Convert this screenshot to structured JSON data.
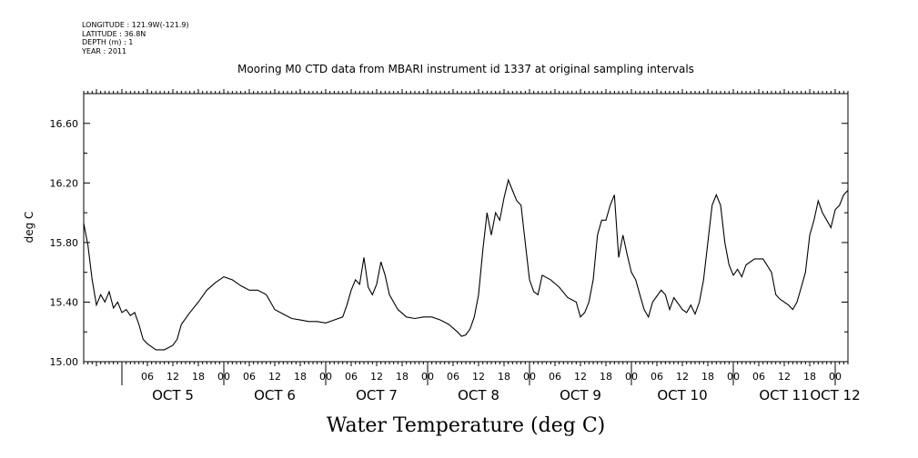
{
  "header": {
    "longitude": "LONGITUDE : 121.9W(-121.9)",
    "latitude": "LATITUDE : 36.8N",
    "depth": "DEPTH (m) : 1",
    "year": "YEAR : 2011"
  },
  "chart_data": {
    "type": "line",
    "title": "Mooring M0 CTD data from MBARI instrument id 1337 at original sampling intervals",
    "xlabel": "Water Temperature (deg C)",
    "ylabel": "deg C",
    "ylim": [
      15.0,
      16.8
    ],
    "xlim": [
      "2011-10-04T15:00",
      "2011-10-12T03:00"
    ],
    "yticks": [
      "15.00",
      "15.40",
      "15.80",
      "16.20",
      "16.60"
    ],
    "hour_ticks": [
      {
        "x": "2011-10-05T06:00",
        "label": "06"
      },
      {
        "x": "2011-10-05T12:00",
        "label": "12"
      },
      {
        "x": "2011-10-05T18:00",
        "label": "18"
      },
      {
        "x": "2011-10-06T00:00",
        "label": "00"
      },
      {
        "x": "2011-10-06T06:00",
        "label": "06"
      },
      {
        "x": "2011-10-06T12:00",
        "label": "12"
      },
      {
        "x": "2011-10-06T18:00",
        "label": "18"
      },
      {
        "x": "2011-10-07T00:00",
        "label": "00"
      },
      {
        "x": "2011-10-07T06:00",
        "label": "06"
      },
      {
        "x": "2011-10-07T12:00",
        "label": "12"
      },
      {
        "x": "2011-10-07T18:00",
        "label": "18"
      },
      {
        "x": "2011-10-08T00:00",
        "label": "00"
      },
      {
        "x": "2011-10-08T06:00",
        "label": "06"
      },
      {
        "x": "2011-10-08T12:00",
        "label": "12"
      },
      {
        "x": "2011-10-08T18:00",
        "label": "18"
      },
      {
        "x": "2011-10-09T00:00",
        "label": "00"
      },
      {
        "x": "2011-10-09T06:00",
        "label": "06"
      },
      {
        "x": "2011-10-09T12:00",
        "label": "12"
      },
      {
        "x": "2011-10-09T18:00",
        "label": "18"
      },
      {
        "x": "2011-10-10T00:00",
        "label": "00"
      },
      {
        "x": "2011-10-10T06:00",
        "label": "06"
      },
      {
        "x": "2011-10-10T12:00",
        "label": "12"
      },
      {
        "x": "2011-10-10T18:00",
        "label": "18"
      },
      {
        "x": "2011-10-11T00:00",
        "label": "00"
      },
      {
        "x": "2011-10-11T06:00",
        "label": "06"
      },
      {
        "x": "2011-10-11T12:00",
        "label": "12"
      },
      {
        "x": "2011-10-11T18:00",
        "label": "18"
      },
      {
        "x": "2011-10-12T00:00",
        "label": "00"
      }
    ],
    "day_labels": [
      {
        "x": "2011-10-05T12:00",
        "label": "OCT  5"
      },
      {
        "x": "2011-10-06T12:00",
        "label": "OCT  6"
      },
      {
        "x": "2011-10-07T12:00",
        "label": "OCT  7"
      },
      {
        "x": "2011-10-08T12:00",
        "label": "OCT  8"
      },
      {
        "x": "2011-10-09T12:00",
        "label": "OCT  9"
      },
      {
        "x": "2011-10-10T12:00",
        "label": "OCT 10"
      },
      {
        "x": "2011-10-11T12:00",
        "label": "OCT 11"
      },
      {
        "x": "2011-10-12T00:00",
        "label": "OCT 12"
      }
    ],
    "grid": false,
    "series": [
      {
        "color": "#000000",
        "points": [
          [
            "2011-10-04T15:00",
            15.93
          ],
          [
            "2011-10-04T16:00",
            15.78
          ],
          [
            "2011-10-04T17:00",
            15.55
          ],
          [
            "2011-10-04T18:00",
            15.38
          ],
          [
            "2011-10-04T19:00",
            15.45
          ],
          [
            "2011-10-04T20:00",
            15.4
          ],
          [
            "2011-10-04T21:00",
            15.47
          ],
          [
            "2011-10-04T22:00",
            15.36
          ],
          [
            "2011-10-04T23:00",
            15.4
          ],
          [
            "2011-10-05T00:00",
            15.33
          ],
          [
            "2011-10-05T01:00",
            15.35
          ],
          [
            "2011-10-05T02:00",
            15.31
          ],
          [
            "2011-10-05T03:00",
            15.33
          ],
          [
            "2011-10-05T04:00",
            15.25
          ],
          [
            "2011-10-05T05:00",
            15.15
          ],
          [
            "2011-10-05T06:00",
            15.12
          ],
          [
            "2011-10-05T08:00",
            15.08
          ],
          [
            "2011-10-05T10:00",
            15.08
          ],
          [
            "2011-10-05T12:00",
            15.11
          ],
          [
            "2011-10-05T13:00",
            15.15
          ],
          [
            "2011-10-05T14:00",
            15.25
          ],
          [
            "2011-10-05T16:00",
            15.33
          ],
          [
            "2011-10-05T18:00",
            15.4
          ],
          [
            "2011-10-05T20:00",
            15.48
          ],
          [
            "2011-10-05T22:00",
            15.53
          ],
          [
            "2011-10-06T00:00",
            15.57
          ],
          [
            "2011-10-06T02:00",
            15.55
          ],
          [
            "2011-10-06T04:00",
            15.51
          ],
          [
            "2011-10-06T06:00",
            15.48
          ],
          [
            "2011-10-06T08:00",
            15.48
          ],
          [
            "2011-10-06T10:00",
            15.45
          ],
          [
            "2011-10-06T12:00",
            15.35
          ],
          [
            "2011-10-06T14:00",
            15.32
          ],
          [
            "2011-10-06T16:00",
            15.29
          ],
          [
            "2011-10-06T18:00",
            15.28
          ],
          [
            "2011-10-06T20:00",
            15.27
          ],
          [
            "2011-10-06T22:00",
            15.27
          ],
          [
            "2011-10-07T00:00",
            15.26
          ],
          [
            "2011-10-07T02:00",
            15.28
          ],
          [
            "2011-10-07T04:00",
            15.3
          ],
          [
            "2011-10-07T05:00",
            15.38
          ],
          [
            "2011-10-07T06:00",
            15.48
          ],
          [
            "2011-10-07T07:00",
            15.55
          ],
          [
            "2011-10-07T08:00",
            15.52
          ],
          [
            "2011-10-07T09:00",
            15.7
          ],
          [
            "2011-10-07T10:00",
            15.5
          ],
          [
            "2011-10-07T11:00",
            15.45
          ],
          [
            "2011-10-07T12:00",
            15.52
          ],
          [
            "2011-10-07T13:00",
            15.67
          ],
          [
            "2011-10-07T14:00",
            15.58
          ],
          [
            "2011-10-07T15:00",
            15.45
          ],
          [
            "2011-10-07T17:00",
            15.35
          ],
          [
            "2011-10-07T19:00",
            15.3
          ],
          [
            "2011-10-07T21:00",
            15.29
          ],
          [
            "2011-10-07T23:00",
            15.3
          ],
          [
            "2011-10-08T01:00",
            15.3
          ],
          [
            "2011-10-08T03:00",
            15.28
          ],
          [
            "2011-10-08T05:00",
            15.25
          ],
          [
            "2011-10-08T07:00",
            15.2
          ],
          [
            "2011-10-08T08:00",
            15.17
          ],
          [
            "2011-10-08T09:00",
            15.18
          ],
          [
            "2011-10-08T10:00",
            15.22
          ],
          [
            "2011-10-08T11:00",
            15.3
          ],
          [
            "2011-10-08T12:00",
            15.45
          ],
          [
            "2011-10-08T13:00",
            15.75
          ],
          [
            "2011-10-08T14:00",
            16.0
          ],
          [
            "2011-10-08T15:00",
            15.85
          ],
          [
            "2011-10-08T16:00",
            16.0
          ],
          [
            "2011-10-08T17:00",
            15.95
          ],
          [
            "2011-10-08T18:00",
            16.1
          ],
          [
            "2011-10-08T19:00",
            16.22
          ],
          [
            "2011-10-08T20:00",
            16.15
          ],
          [
            "2011-10-08T21:00",
            16.08
          ],
          [
            "2011-10-08T22:00",
            16.05
          ],
          [
            "2011-10-08T23:00",
            15.8
          ],
          [
            "2011-10-09T00:00",
            15.55
          ],
          [
            "2011-10-09T01:00",
            15.47
          ],
          [
            "2011-10-09T02:00",
            15.45
          ],
          [
            "2011-10-09T03:00",
            15.58
          ],
          [
            "2011-10-09T05:00",
            15.55
          ],
          [
            "2011-10-09T07:00",
            15.5
          ],
          [
            "2011-10-09T09:00",
            15.43
          ],
          [
            "2011-10-09T11:00",
            15.4
          ],
          [
            "2011-10-09T12:00",
            15.3
          ],
          [
            "2011-10-09T13:00",
            15.33
          ],
          [
            "2011-10-09T14:00",
            15.4
          ],
          [
            "2011-10-09T15:00",
            15.55
          ],
          [
            "2011-10-09T16:00",
            15.85
          ],
          [
            "2011-10-09T17:00",
            15.95
          ],
          [
            "2011-10-09T18:00",
            15.95
          ],
          [
            "2011-10-09T19:00",
            16.05
          ],
          [
            "2011-10-09T20:00",
            16.12
          ],
          [
            "2011-10-09T21:00",
            15.7
          ],
          [
            "2011-10-09T22:00",
            15.85
          ],
          [
            "2011-10-09T23:00",
            15.72
          ],
          [
            "2011-10-10T00:00",
            15.6
          ],
          [
            "2011-10-10T01:00",
            15.55
          ],
          [
            "2011-10-10T02:00",
            15.45
          ],
          [
            "2011-10-10T03:00",
            15.35
          ],
          [
            "2011-10-10T04:00",
            15.3
          ],
          [
            "2011-10-10T05:00",
            15.4
          ],
          [
            "2011-10-10T07:00",
            15.48
          ],
          [
            "2011-10-10T08:00",
            15.45
          ],
          [
            "2011-10-10T09:00",
            15.35
          ],
          [
            "2011-10-10T10:00",
            15.43
          ],
          [
            "2011-10-10T12:00",
            15.35
          ],
          [
            "2011-10-10T13:00",
            15.33
          ],
          [
            "2011-10-10T14:00",
            15.38
          ],
          [
            "2011-10-10T15:00",
            15.32
          ],
          [
            "2011-10-10T16:00",
            15.4
          ],
          [
            "2011-10-10T17:00",
            15.55
          ],
          [
            "2011-10-10T18:00",
            15.8
          ],
          [
            "2011-10-10T19:00",
            16.05
          ],
          [
            "2011-10-10T20:00",
            16.12
          ],
          [
            "2011-10-10T21:00",
            16.05
          ],
          [
            "2011-10-10T22:00",
            15.8
          ],
          [
            "2011-10-10T23:00",
            15.65
          ],
          [
            "2011-10-11T00:00",
            15.58
          ],
          [
            "2011-10-11T01:00",
            15.62
          ],
          [
            "2011-10-11T02:00",
            15.57
          ],
          [
            "2011-10-11T03:00",
            15.65
          ],
          [
            "2011-10-11T05:00",
            15.69
          ],
          [
            "2011-10-11T07:00",
            15.69
          ],
          [
            "2011-10-11T09:00",
            15.6
          ],
          [
            "2011-10-11T10:00",
            15.45
          ],
          [
            "2011-10-11T11:00",
            15.42
          ],
          [
            "2011-10-11T13:00",
            15.38
          ],
          [
            "2011-10-11T14:00",
            15.35
          ],
          [
            "2011-10-11T15:00",
            15.4
          ],
          [
            "2011-10-11T16:00",
            15.5
          ],
          [
            "2011-10-11T17:00",
            15.6
          ],
          [
            "2011-10-11T18:00",
            15.85
          ],
          [
            "2011-10-11T19:00",
            15.95
          ],
          [
            "2011-10-11T20:00",
            16.08
          ],
          [
            "2011-10-11T21:00",
            16.0
          ],
          [
            "2011-10-11T22:00",
            15.95
          ],
          [
            "2011-10-11T23:00",
            15.9
          ],
          [
            "2011-10-12T00:00",
            16.02
          ],
          [
            "2011-10-12T01:00",
            16.05
          ],
          [
            "2011-10-12T02:00",
            16.12
          ],
          [
            "2011-10-12T03:00",
            16.15
          ]
        ]
      }
    ]
  }
}
